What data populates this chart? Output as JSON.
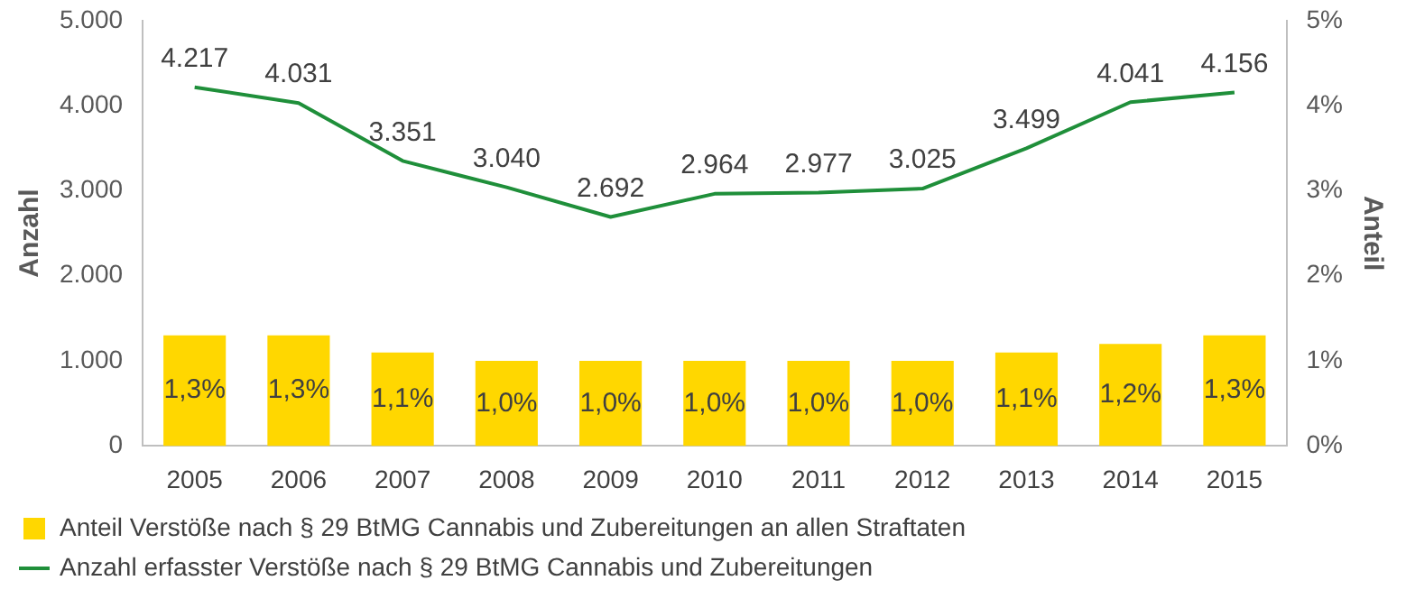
{
  "chart_data": {
    "type": "bar",
    "ylabel": "Anzahl",
    "y2label": "Anteil",
    "categories": [
      "2005",
      "2006",
      "2007",
      "2008",
      "2009",
      "2010",
      "2011",
      "2012",
      "2013",
      "2014",
      "2015"
    ],
    "series": [
      {
        "name": "Anteil Verstöße nach § 29 BtMG Cannabis und Zubereitungen an allen Straftaten",
        "axis": "y2",
        "color": "#ffd700",
        "values": [
          1.3,
          1.3,
          1.1,
          1.0,
          1.0,
          1.0,
          1.0,
          1.0,
          1.1,
          1.2,
          1.3
        ],
        "value_labels": [
          "1,3%",
          "1,3%",
          "1,1%",
          "1,0%",
          "1,0%",
          "1,0%",
          "1,0%",
          "1,0%",
          "1,1%",
          "1,2%",
          "1,3%"
        ]
      },
      {
        "name": "Anzahl erfasster Verstöße nach § 29 BtMG Cannabis und Zubereitungen",
        "type": "line",
        "axis": "y",
        "color": "#1f8f3a",
        "values": [
          4217,
          4031,
          3351,
          3040,
          2692,
          2964,
          2977,
          3025,
          3499,
          4041,
          4156
        ],
        "value_labels": [
          "4.217",
          "4.031",
          "3.351",
          "3.040",
          "2.692",
          "2.964",
          "2.977",
          "3.025",
          "3.499",
          "4.041",
          "4.156"
        ]
      }
    ],
    "ylim": [
      0,
      5000
    ],
    "yticks": [
      {
        "value": 0,
        "label": "0"
      },
      {
        "value": 1000,
        "label": "1.000"
      },
      {
        "value": 2000,
        "label": "2.000"
      },
      {
        "value": 3000,
        "label": "3.000"
      },
      {
        "value": 4000,
        "label": "4.000"
      },
      {
        "value": 5000,
        "label": "5.000"
      }
    ],
    "y2lim": [
      0,
      5
    ],
    "y2ticks": [
      {
        "value": 0,
        "label": "0%"
      },
      {
        "value": 1,
        "label": "1%"
      },
      {
        "value": 2,
        "label": "2%"
      },
      {
        "value": 3,
        "label": "3%"
      },
      {
        "value": 4,
        "label": "4%"
      },
      {
        "value": 5,
        "label": "5%"
      }
    ],
    "grid": false,
    "legend": "bottom",
    "marker": "none",
    "line_style": "solid"
  }
}
